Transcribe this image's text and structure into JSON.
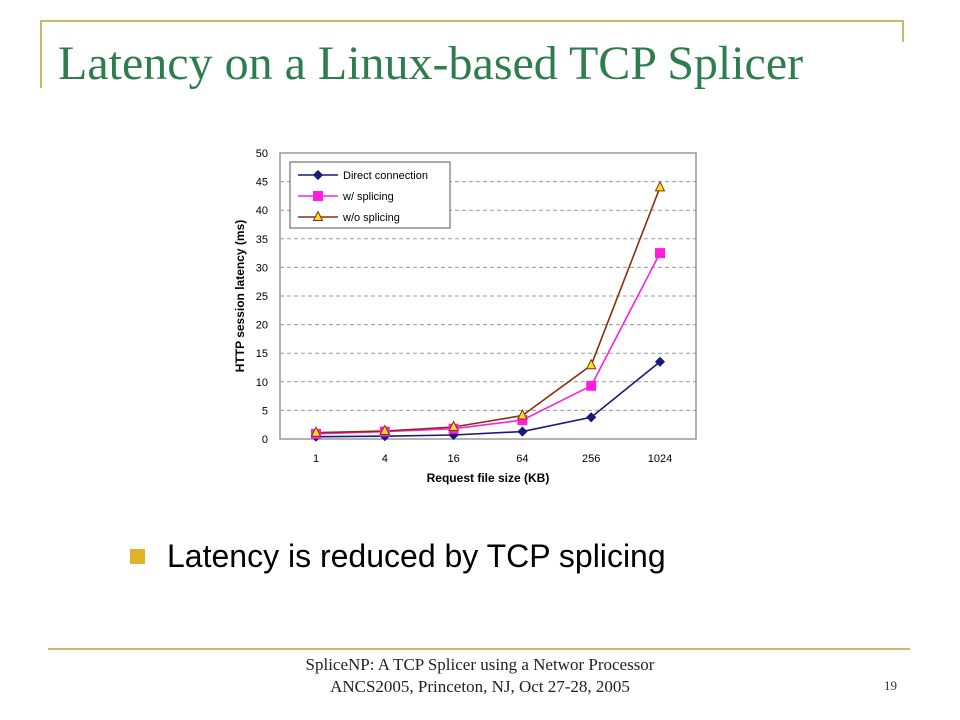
{
  "slide": {
    "title": "Latency on a Linux-based TCP Splicer",
    "bullet": "Latency is reduced by TCP splicing",
    "footer_line1": "SpliceNP: A TCP Splicer using a Networ Processor",
    "footer_line2": "ANCS2005, Princeton, NJ, Oct 27-28, 2005",
    "page_number": "19"
  },
  "chart_data": {
    "type": "line",
    "xlabel": "Request file size (KB)",
    "ylabel": "HTTP session latency (ms)",
    "categories": [
      "1",
      "4",
      "16",
      "64",
      "256",
      "1024"
    ],
    "y_ticks": [
      "0",
      "5",
      "10",
      "15",
      "20",
      "25",
      "30",
      "35",
      "40",
      "45",
      "50"
    ],
    "ylim": [
      0,
      50
    ],
    "grid": "horizontal dashed",
    "legend_position": "top-left",
    "series": [
      {
        "name": "Direct connection",
        "values": [
          0.4,
          0.5,
          0.7,
          1.3,
          3.8,
          13.5
        ],
        "color": "#1a1a7a",
        "marker": "diamond"
      },
      {
        "name": "w/ splicing",
        "values": [
          0.9,
          1.3,
          1.8,
          3.3,
          9.3,
          32.5
        ],
        "color": "#ff1ee0",
        "marker": "square"
      },
      {
        "name": "w/o splicing",
        "values": [
          1.1,
          1.4,
          2.1,
          4.1,
          12.9,
          44.0
        ],
        "color": "#8b2d10",
        "marker": "triangle",
        "marker_fill": "#f4e21e"
      }
    ]
  }
}
